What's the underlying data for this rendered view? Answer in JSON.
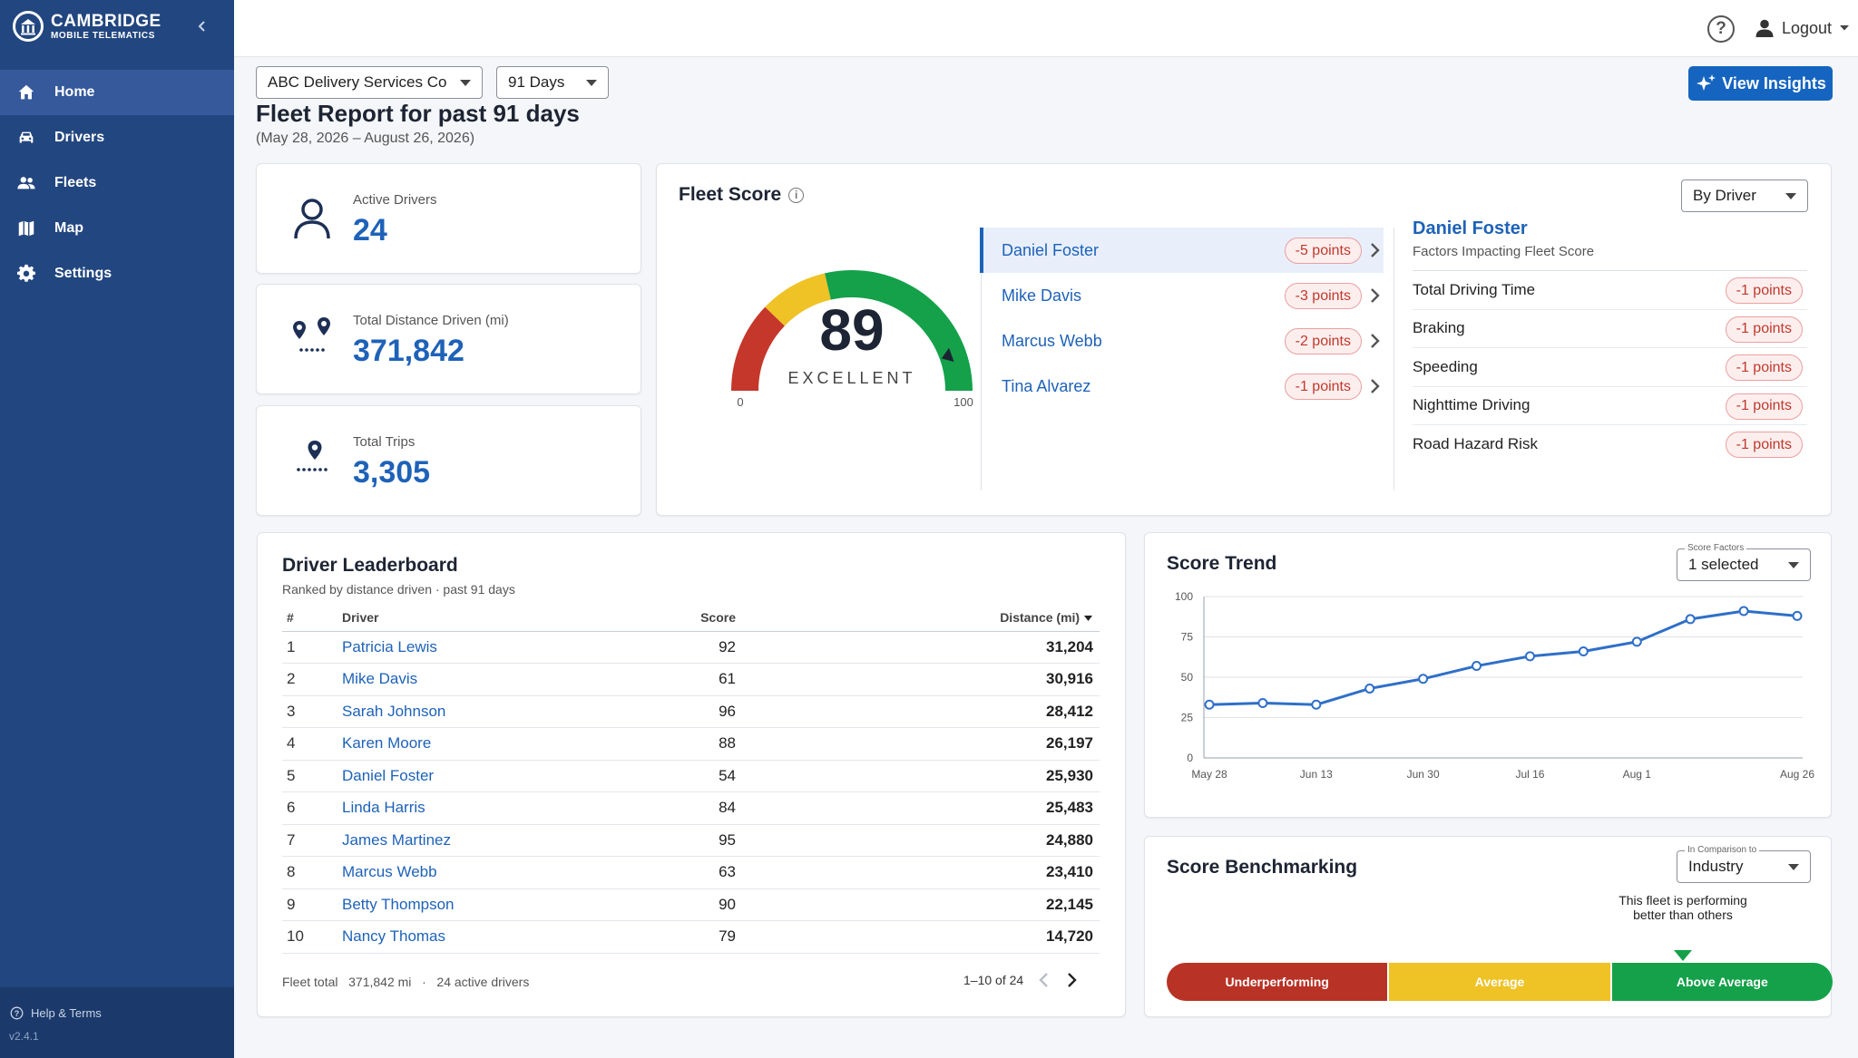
{
  "brand": {
    "line1": "CAMBRIDGE",
    "line2": "MOBILE TELEMATICS"
  },
  "sidebar": {
    "items": [
      {
        "label": "Home",
        "icon": "home-icon",
        "active": true
      },
      {
        "label": "Drivers",
        "icon": "car-icon"
      },
      {
        "label": "Fleets",
        "icon": "people-icon"
      },
      {
        "label": "Map",
        "icon": "map-icon"
      },
      {
        "label": "Settings",
        "icon": "gear-icon"
      }
    ],
    "help_label": "Help & Terms",
    "version": "v2.4.1"
  },
  "topbar": {
    "help": "?",
    "logout_label": "Logout"
  },
  "filters": {
    "company": "ABC Delivery Services Co",
    "period": "91 Days"
  },
  "header": {
    "title": "Fleet Report for past 91 days",
    "date_range": "(May 28, 2026 – August 26, 2026)",
    "insights_label": "View Insights"
  },
  "stats": [
    {
      "label": "Active Drivers",
      "value": "24"
    },
    {
      "label": "Total Distance Driven (mi)",
      "value": "371,842"
    },
    {
      "label": "Total Trips",
      "value": "3,305"
    }
  ],
  "fleet_score": {
    "title": "Fleet Score",
    "score": "89",
    "score_value": 89,
    "rating": "EXCELLENT",
    "min_label": "0",
    "max_label": "100",
    "view_select": "By Driver",
    "drivers": [
      {
        "name": "Daniel Foster",
        "points": "-5 points",
        "selected": true
      },
      {
        "name": "Mike Davis",
        "points": "-3 points"
      },
      {
        "name": "Marcus Webb",
        "points": "-2 points"
      },
      {
        "name": "Tina Alvarez",
        "points": "-1 points"
      }
    ],
    "factor_driver": "Daniel Foster",
    "factor_subtitle": "Factors Impacting Fleet Score",
    "factors": [
      {
        "name": "Total Driving Time",
        "points": "-1 points"
      },
      {
        "name": "Braking",
        "points": "-1 points"
      },
      {
        "name": "Speeding",
        "points": "-1 points"
      },
      {
        "name": "Nighttime Driving",
        "points": "-1 points"
      },
      {
        "name": "Road Hazard Risk",
        "points": "-1 points"
      }
    ],
    "colors": {
      "red": "#c4372a",
      "yellow": "#efc226",
      "green": "#14a14a"
    }
  },
  "leaderboard": {
    "title": "Driver Leaderboard",
    "subtitle": "Ranked by distance driven · past 91 days",
    "columns": {
      "rank": "#",
      "driver": "Driver",
      "score": "Score",
      "distance": "Distance (mi)"
    },
    "rows": [
      {
        "rank": "1",
        "driver": "Patricia Lewis",
        "score": "92",
        "distance": "31,204"
      },
      {
        "rank": "2",
        "driver": "Mike Davis",
        "score": "61",
        "distance": "30,916"
      },
      {
        "rank": "3",
        "driver": "Sarah Johnson",
        "score": "96",
        "distance": "28,412"
      },
      {
        "rank": "4",
        "driver": "Karen Moore",
        "score": "88",
        "distance": "26,197"
      },
      {
        "rank": "5",
        "driver": "Daniel Foster",
        "score": "54",
        "distance": "25,930"
      },
      {
        "rank": "6",
        "driver": "Linda Harris",
        "score": "84",
        "distance": "25,483"
      },
      {
        "rank": "7",
        "driver": "James Martinez",
        "score": "95",
        "distance": "24,880"
      },
      {
        "rank": "8",
        "driver": "Marcus Webb",
        "score": "63",
        "distance": "23,410"
      },
      {
        "rank": "9",
        "driver": "Betty Thompson",
        "score": "90",
        "distance": "22,145"
      },
      {
        "rank": "10",
        "driver": "Nancy Thomas",
        "score": "79",
        "distance": "14,720"
      }
    ],
    "footer": "Fleet total   371,842 mi   ·   24 active drivers",
    "pagination": "1–10 of 24"
  },
  "score_trend": {
    "title": "Score Trend",
    "select_label": "Score Factors",
    "select_value": "1 selected"
  },
  "chart_data": {
    "type": "line",
    "title": "Score Trend",
    "x_tick_labels": [
      "May 28",
      "Jun 13",
      "Jun 30",
      "Jul 16",
      "Aug 1",
      "Aug 26"
    ],
    "x_tick_positions": [
      0,
      2,
      4,
      6,
      8,
      11
    ],
    "y_ticks": [
      0,
      25,
      50,
      75,
      100
    ],
    "ylim": [
      0,
      100
    ],
    "grid": true,
    "series": [
      {
        "values": [
          33,
          34,
          33,
          43,
          49,
          57,
          63,
          66,
          72,
          86,
          91,
          88
        ],
        "color": "#2f6fc8"
      }
    ]
  },
  "benchmark": {
    "title": "Score Benchmarking",
    "select_label": "In Comparison to",
    "select_value": "Industry",
    "message": "This fleet is performing better than others",
    "segments": [
      "Underperforming",
      "Average",
      "Above Average"
    ]
  }
}
